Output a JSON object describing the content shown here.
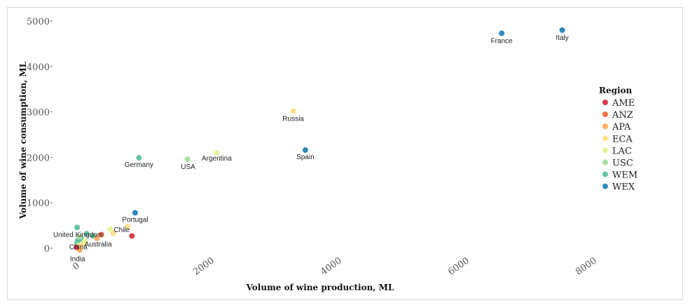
{
  "chart_data": {
    "type": "scatter",
    "title": "",
    "xlabel": "Volume of wine production, ML",
    "ylabel": "Volume of wine consumption, ML",
    "xlim": [
      -150,
      8300
    ],
    "ylim": [
      -200,
      5100
    ],
    "x_ticks": [
      0,
      2000,
      4000,
      6000,
      8000
    ],
    "y_ticks": [
      0,
      1000,
      2000,
      3000,
      4000,
      5000
    ],
    "grid": false,
    "legend": {
      "title": "Region",
      "placement": "right",
      "entries": [
        {
          "name": "AME",
          "color": "#d53e4f"
        },
        {
          "name": "ANZ",
          "color": "#f46d43"
        },
        {
          "name": "APA",
          "color": "#fdae61"
        },
        {
          "name": "ECA",
          "color": "#fee08b"
        },
        {
          "name": "LAC",
          "color": "#e6f598"
        },
        {
          "name": "USC",
          "color": "#abdda4"
        },
        {
          "name": "WEM",
          "color": "#66c2a5"
        },
        {
          "name": "WEX",
          "color": "#3288bd"
        }
      ]
    },
    "points": [
      {
        "label": "Italy",
        "x": 7600,
        "y": 4800,
        "region": "WEX"
      },
      {
        "label": "France",
        "x": 6650,
        "y": 4730,
        "region": "WEX"
      },
      {
        "label": "Russia",
        "x": 3380,
        "y": 3020,
        "region": "ECA"
      },
      {
        "label": "Spain",
        "x": 3570,
        "y": 2160,
        "region": "WEX"
      },
      {
        "label": "Argentina",
        "x": 2180,
        "y": 2100,
        "region": "LAC"
      },
      {
        "label": "USA",
        "x": 1720,
        "y": 1960,
        "region": "USC"
      },
      {
        "label": "Germany",
        "x": 960,
        "y": 1990,
        "region": "WEM"
      },
      {
        "label": "Portugal",
        "x": 900,
        "y": 780,
        "region": "WEX"
      },
      {
        "label": "Chile",
        "x": 510,
        "y": 420,
        "region": "LAC"
      },
      {
        "label": "Australia",
        "x": 370,
        "y": 300,
        "region": "ANZ"
      },
      {
        "label": "United Kingdom",
        "x": -10,
        "y": 460,
        "region": "WEM"
      },
      {
        "label": "China",
        "x": 20,
        "y": 20,
        "region": "APA"
      },
      {
        "label": "India",
        "x": 30,
        "y": -40,
        "region": "APA"
      },
      {
        "label": "",
        "x": 850,
        "y": 270,
        "region": "AME"
      },
      {
        "label": "",
        "x": 780,
        "y": 480,
        "region": "ECA"
      },
      {
        "label": "",
        "x": 560,
        "y": 330,
        "region": "ECA"
      },
      {
        "label": "",
        "x": 140,
        "y": 320,
        "region": "WEM"
      },
      {
        "label": "",
        "x": 240,
        "y": 270,
        "region": "WEM"
      },
      {
        "label": "",
        "x": 300,
        "y": 220,
        "region": "APA"
      },
      {
        "label": "",
        "x": 60,
        "y": 200,
        "region": "WEM"
      },
      {
        "label": "",
        "x": 0,
        "y": 170,
        "region": "WEM"
      },
      {
        "label": "",
        "x": -10,
        "y": 110,
        "region": "WEM"
      },
      {
        "label": "",
        "x": 10,
        "y": 60,
        "region": "LAC"
      },
      {
        "label": "",
        "x": 80,
        "y": 90,
        "region": "ECA"
      },
      {
        "label": "",
        "x": 30,
        "y": 250,
        "region": "USC"
      },
      {
        "label": "",
        "x": -20,
        "y": 20,
        "region": "AME"
      },
      {
        "label": "",
        "x": 110,
        "y": 150,
        "region": "LAC"
      }
    ]
  }
}
